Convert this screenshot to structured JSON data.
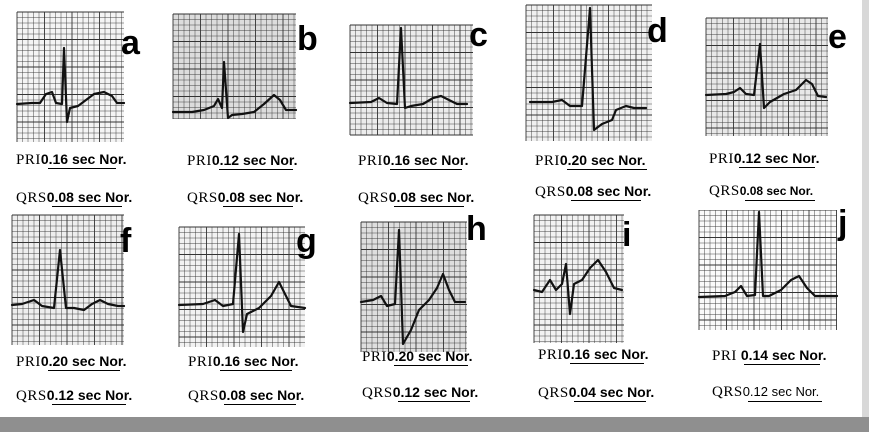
{
  "panels": [
    {
      "id": "a",
      "pri_label": "PRI",
      "pri_value": "0.16 sec Nor.",
      "qrs_label": "QRS",
      "qrs_value": "0.08 sec Nor.",
      "grid": "#f4f4f4"
    },
    {
      "id": "b",
      "pri_label": "PRI",
      "pri_value": "0.12 sec Nor.",
      "qrs_label": "QRS",
      "qrs_value": "0.08 sec Nor.",
      "grid": "#dcdcdc"
    },
    {
      "id": "c",
      "pri_label": "PRI",
      "pri_value": "0.16 sec Nor.",
      "qrs_label": "QRS",
      "qrs_value": "0.08 sec Nor.",
      "grid": "#ececec"
    },
    {
      "id": "d",
      "pri_label": "PRI",
      "pri_value": "0.20 sec Nor.",
      "qrs_label": "QRS",
      "qrs_value": "0.08 sec Nor.",
      "grid": "#f0f0f0"
    },
    {
      "id": "e",
      "pri_label": "PRI",
      "pri_value": "0.12 sec Nor.",
      "qrs_label": "QRS",
      "qrs_value": "0.08 sec Nor.",
      "grid": "#e8e8e8"
    },
    {
      "id": "f",
      "pri_label": "PRI",
      "pri_value": "0.20 sec Nor.",
      "qrs_label": "QRS",
      "qrs_value": "0.12 sec Nor.",
      "grid": "#eeeeee"
    },
    {
      "id": "g",
      "pri_label": "PRI",
      "pri_value": "0.16 sec Nor.",
      "qrs_label": "QRS",
      "qrs_value": "0.08 sec Nor.",
      "grid": "#f2f2f2"
    },
    {
      "id": "h",
      "pri_label": "PRI",
      "pri_value": "0.20 sec Nor.",
      "qrs_label": "QRS",
      "qrs_value": "0.12 sec Nor.",
      "grid": "#dedede"
    },
    {
      "id": "i",
      "pri_label": "PRI",
      "pri_value": "0.16 sec Nor.",
      "qrs_label": "QRS",
      "qrs_value": "0.04 sec Nor.",
      "grid": "#f2f2f2"
    },
    {
      "id": "j",
      "pri_label": "PRI",
      "pri_value": "0.14 sec Nor.",
      "qrs_label": "QRS",
      "qrs_value": "0.12 sec Nor.",
      "grid": "#fafafa"
    }
  ],
  "colors": {
    "trace": "#111111",
    "grid_line": "#333333"
  }
}
